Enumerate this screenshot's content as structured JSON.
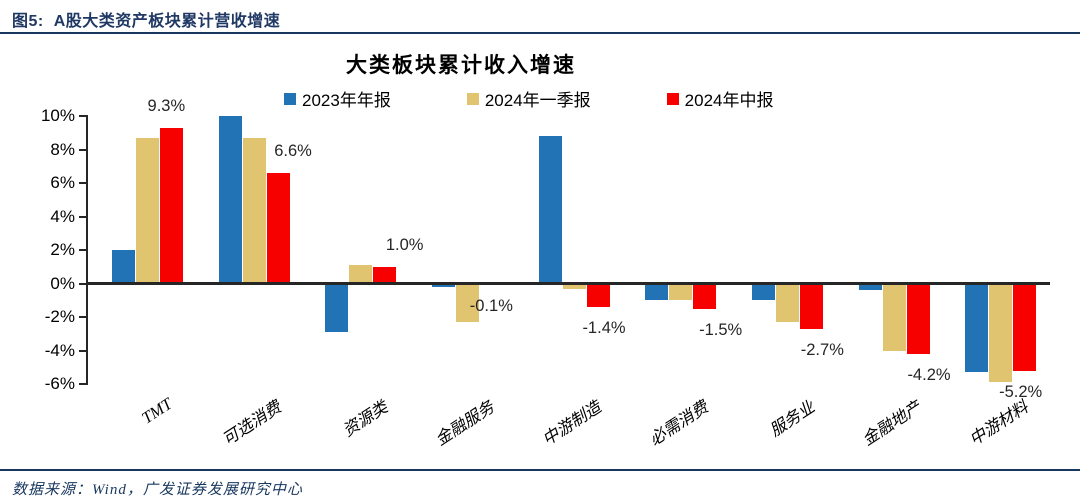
{
  "header": {
    "figure_label": "图5:",
    "title": "A股大类资产板块累计营收增速"
  },
  "footer": {
    "source": "数据来源：Wind，广发证券发展研究中心"
  },
  "colors": {
    "accent_navy": "#1F3864",
    "rule_line": "#17375E",
    "axis": "#262626",
    "series_blue": "#2273B5",
    "series_tan": "#E0C46F",
    "series_red": "#F60000"
  },
  "chart_data": {
    "type": "bar",
    "title": "大类板块累计收入增速",
    "categories": [
      "TMT",
      "可选消费",
      "资源类",
      "金融服务",
      "中游制造",
      "必需消费",
      "服务业",
      "金融地产",
      "中游材料"
    ],
    "series": [
      {
        "name": "2023年年报",
        "color": "#2273B5",
        "values": [
          2.0,
          10.0,
          -2.9,
          -0.2,
          8.8,
          -1.0,
          -1.0,
          -0.4,
          -5.3
        ]
      },
      {
        "name": "2024年一季报",
        "color": "#E0C46F",
        "values": [
          8.7,
          8.7,
          1.1,
          -2.3,
          -0.3,
          -1.0,
          -2.3,
          -4.0,
          -5.9
        ]
      },
      {
        "name": "2024年中报",
        "color": "#F60000",
        "values": [
          9.3,
          6.6,
          1.0,
          -0.1,
          -1.4,
          -1.5,
          -2.7,
          -4.2,
          -5.2
        ]
      }
    ],
    "data_labels": [
      "9.3%",
      "6.6%",
      "1.0%",
      "-0.1%",
      "-1.4%",
      "-1.5%",
      "-2.7%",
      "-4.2%",
      "-5.2%"
    ],
    "data_labels_series": "2024年中报",
    "y_ticks": [
      "10%",
      "8%",
      "6%",
      "4%",
      "2%",
      "0%",
      "-2%",
      "-4%",
      "-6%"
    ],
    "ylim": [
      -6,
      10
    ],
    "xlabel": "",
    "ylabel": "",
    "grid": false,
    "legend_position": "top"
  }
}
